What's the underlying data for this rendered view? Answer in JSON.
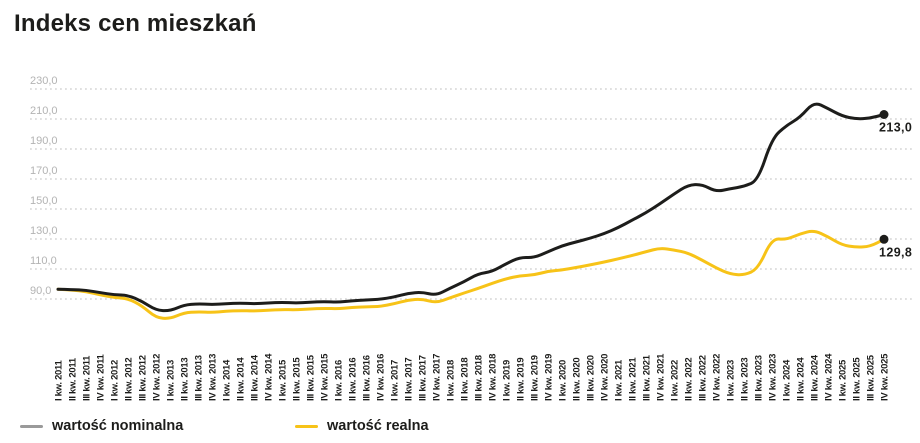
{
  "title": "Indeks cen mieszkań",
  "legend": {
    "nominal": "wartość nominalna",
    "real": "wartość realna"
  },
  "colors": {
    "background": "#ffffff",
    "text": "#1d1d1b",
    "nominal_line": "#1d1d1b",
    "real_line": "#f7c318",
    "legend_nominal_swatch": "#9a9a9a",
    "grid": "#cdcdcd",
    "y_axis_text": "#b3b3b3",
    "end_dot": "#1d1d1b"
  },
  "chart_data": {
    "type": "line",
    "title": "Indeks cen mieszkań",
    "grid": "dotted-horizontal",
    "legend_position": "bottom-left",
    "y_axis": {
      "range_shown": [
        90,
        230
      ],
      "ticks": [
        {
          "value": 230,
          "label": "230,0"
        },
        {
          "value": 210,
          "label": "210,0"
        },
        {
          "value": 190,
          "label": "190,0"
        },
        {
          "value": 170,
          "label": "170,0"
        },
        {
          "value": 150,
          "label": "150,0"
        },
        {
          "value": 130,
          "label": "130,0"
        },
        {
          "value": 110,
          "label": "110,0"
        },
        {
          "value": 90,
          "label": "90,0"
        }
      ]
    },
    "categories": [
      "I kw. 2011",
      "II kw. 2011",
      "III kw. 2011",
      "IV kw. 2011",
      "I kw. 2012",
      "II kw. 2012",
      "III kw. 2012",
      "IV kw. 2012",
      "I kw. 2013",
      "II kw. 2013",
      "III kw. 2013",
      "IV kw. 2013",
      "I kw. 2014",
      "II kw. 2014",
      "III kw. 2014",
      "IV kw. 2014",
      "I kw. 2015",
      "II kw. 2015",
      "III kw. 2015",
      "IV kw. 2015",
      "I kw. 2016",
      "II kw. 2016",
      "III kw. 2016",
      "IV kw. 2016",
      "I kw. 2017",
      "II kw. 2017",
      "III kw. 2017",
      "IV kw. 2017",
      "I kw. 2018",
      "II kw. 2018",
      "III kw. 2018",
      "IV kw. 2018",
      "I kw. 2019",
      "II kw. 2019",
      "III kw. 2019",
      "IV kw. 2019",
      "I kw. 2020",
      "II kw. 2020",
      "III kw. 2020",
      "IV kw. 2020",
      "I kw. 2021",
      "II kw. 2021",
      "III kw. 2021",
      "IV kw. 2021",
      "I kw. 2022",
      "II kw. 2022",
      "III kw. 2022",
      "IV kw. 2022",
      "I kw. 2023",
      "II kw. 2023",
      "III kw. 2023",
      "IV kw. 2023",
      "I kw. 2024",
      "II kw. 2024",
      "III kw. 2024",
      "IV kw. 2024",
      "I kw. 2025",
      "II kw. 2025",
      "III kw. 2025",
      "IV kw. 2025"
    ],
    "series": [
      {
        "key": "nominal",
        "name": "wartość nominalna",
        "color": "#1d1d1b",
        "end_label": "213,0",
        "values": [
          96.5,
          96.3,
          95.8,
          94.3,
          92.8,
          92.5,
          88.5,
          82.5,
          82.0,
          86.0,
          86.8,
          86.3,
          86.8,
          87.3,
          86.8,
          87.3,
          87.8,
          87.3,
          87.8,
          88.3,
          87.8,
          88.8,
          89.3,
          89.8,
          91.3,
          93.8,
          94.6,
          92.4,
          97.2,
          101.5,
          106.8,
          108.2,
          113.5,
          117.8,
          117.5,
          121.5,
          125.5,
          128.0,
          130.5,
          133.5,
          137.5,
          142.5,
          147.5,
          153.5,
          160.0,
          166.0,
          166.5,
          161.5,
          163.5,
          165.0,
          169.0,
          197.0,
          205.5,
          211.0,
          221.5,
          217.0,
          212.0,
          210.0,
          210.5,
          213.0
        ]
      },
      {
        "key": "real",
        "name": "wartość realna",
        "color": "#f7c318",
        "end_label": "129,8",
        "values": [
          96.5,
          96.0,
          95.0,
          92.8,
          91.0,
          90.3,
          85.5,
          77.5,
          76.8,
          80.8,
          81.5,
          81.0,
          81.8,
          82.3,
          82.0,
          82.5,
          83.0,
          82.8,
          83.3,
          83.8,
          83.5,
          84.3,
          84.8,
          85.0,
          86.8,
          89.3,
          90.0,
          87.4,
          90.8,
          94.0,
          97.0,
          100.4,
          103.5,
          105.5,
          106.0,
          108.5,
          109.3,
          111.0,
          112.7,
          114.6,
          116.7,
          119.0,
          121.5,
          124.0,
          122.7,
          120.7,
          116.0,
          110.7,
          106.7,
          105.8,
          110.0,
          130.5,
          129.5,
          133.5,
          135.8,
          131.5,
          126.0,
          124.5,
          125.0,
          129.8
        ]
      }
    ]
  }
}
